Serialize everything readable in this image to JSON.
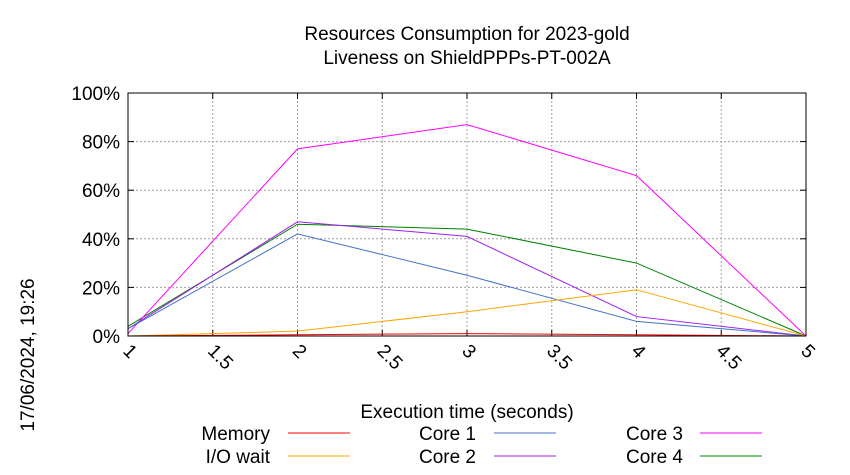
{
  "chart_data": {
    "type": "line",
    "title_lines": [
      "Resources Consumption for 2023-gold",
      "Liveness on ShieldPPPs-PT-002A"
    ],
    "xlabel": "Execution time (seconds)",
    "ylabel": "",
    "timestamp": "17/06/2024, 19:26",
    "x_ticks": [
      "1",
      "1.5",
      "2",
      "2.5",
      "3",
      "3.5",
      "4",
      "4.5",
      "5"
    ],
    "y_ticks": [
      "0%",
      "20%",
      "40%",
      "60%",
      "80%",
      "100%"
    ],
    "xlim": [
      1,
      5
    ],
    "ylim": [
      0,
      100
    ],
    "grid": true,
    "legend_position": "bottom",
    "x": [
      1,
      2,
      3,
      4,
      5
    ],
    "series": [
      {
        "name": "Memory",
        "color": "#ff0000",
        "values": [
          0,
          0.5,
          1,
          0.5,
          0
        ]
      },
      {
        "name": "I/O wait",
        "color": "#ffa500",
        "values": [
          0,
          2,
          10,
          19,
          0
        ]
      },
      {
        "name": "Core 1",
        "color": "#4472c4",
        "values": [
          3,
          42,
          25,
          6,
          0
        ]
      },
      {
        "name": "Core 2",
        "color": "#a020f0",
        "values": [
          3,
          47,
          41,
          8,
          0
        ]
      },
      {
        "name": "Core 3",
        "color": "#ff00ff",
        "values": [
          1,
          77,
          87,
          66,
          0
        ]
      },
      {
        "name": "Core 4",
        "color": "#008000",
        "values": [
          4,
          46,
          44,
          30,
          0
        ]
      }
    ]
  }
}
